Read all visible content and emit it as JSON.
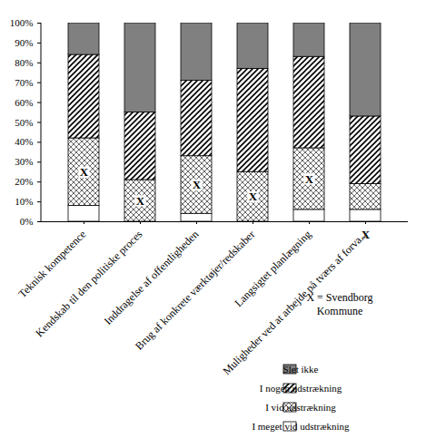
{
  "chart_data": {
    "type": "bar",
    "stacked": true,
    "categories": [
      "Teknisk kompetence",
      "Kendskab til den politiske proces",
      "Inddragelse af offentligheden",
      "Brug af konkrete værktøjer/redskaber",
      "Langsigtet planlægning",
      "Muligheder ved at arbejde på tværs af forva..."
    ],
    "series": [
      {
        "name": "I meget vid udstrækning",
        "color": "#ffffff",
        "values": [
          8,
          0,
          4,
          0,
          6,
          6
        ]
      },
      {
        "name": "I vid udstrækning",
        "color": "#ffffff",
        "values": [
          34,
          21,
          29,
          25,
          31,
          13
        ]
      },
      {
        "name": "I nogen udstrækning",
        "color": "#ffffff",
        "values": [
          42,
          34,
          38,
          52,
          46,
          34
        ]
      },
      {
        "name": "Slet ikke",
        "color": "#808080",
        "values": [
          16,
          45,
          29,
          23,
          17,
          47
        ]
      }
    ],
    "ylim": [
      0,
      100
    ],
    "yticks": [
      {
        "value": 0,
        "label": "0%"
      },
      {
        "value": 10,
        "label": "10%"
      },
      {
        "value": 20,
        "label": "20%"
      },
      {
        "value": 30,
        "label": "30%"
      },
      {
        "value": 40,
        "label": "40%"
      },
      {
        "value": 50,
        "label": "50%"
      },
      {
        "value": 60,
        "label": "60%"
      },
      {
        "value": 70,
        "label": "70%"
      },
      {
        "value": 80,
        "label": "80%"
      },
      {
        "value": 90,
        "label": "90%"
      },
      {
        "value": 100,
        "label": "100%"
      }
    ],
    "legend": "lower right",
    "markers": {
      "label": "X",
      "values": [
        "I vid udstrækning",
        "I vid udstrækning",
        "I vid udstrækning",
        "I vid udstrækning",
        "I vid udstrækning",
        null
      ]
    },
    "annotation": "X = Svendborg Kommune"
  }
}
